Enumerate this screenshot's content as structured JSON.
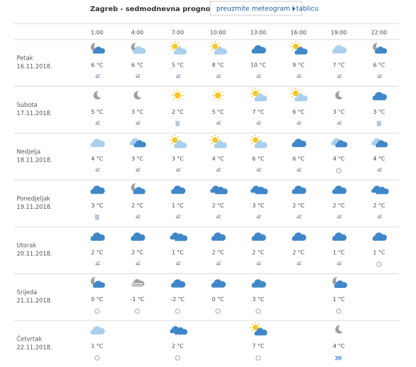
{
  "header": {
    "title": "Zagreb - sedmodnevna prognoza",
    "button": "preuzmite meteogram i tablicu"
  },
  "table": {
    "times": [
      "1:00",
      "4:00",
      "7:00",
      "10:00",
      "13:00",
      "16:00",
      "19:00",
      "22:00"
    ],
    "rows": [
      {
        "day": "Petak",
        "date": "16.11.2018.",
        "temps": [
          "6 °C",
          "6 °C",
          "5 °C",
          "8 °C",
          "10 °C",
          "9 °C",
          "7 °C",
          "6 °C"
        ]
      },
      {
        "day": "Subota",
        "date": "17.11.2018.",
        "temps": [
          "5 °C",
          "3 °C",
          "2 °C",
          "5 °C",
          "7 °C",
          "6 °C",
          "3 °C",
          "3 °C"
        ]
      },
      {
        "day": "Nedjelja",
        "date": "18.11.2018.",
        "temps": [
          "4 °C",
          "3 °C",
          "3 °C",
          "4 °C",
          "6 °C",
          "6 °C",
          "4 °C",
          "4 °C"
        ]
      },
      {
        "day": "Ponedjeljak",
        "date": "19.11.2018.",
        "temps": [
          "3 °C",
          "2 °C",
          "1 °C",
          "2 °C",
          "3 °C",
          "2 °C",
          "2 °C",
          "2 °C"
        ]
      },
      {
        "day": "Utorak",
        "date": "20.11.2018.",
        "temps": [
          "2 °C",
          "2 °C",
          "1 °C",
          "2 °C",
          "2 °C",
          "2 °C",
          "1 °C",
          "1 °C"
        ]
      },
      {
        "day": "Srijeda",
        "date": "21.11.2018.",
        "temps": [
          "0 °C",
          "-1 °C",
          "-2 °C",
          "0 °C",
          "3 °C",
          null,
          "1 °C",
          null
        ]
      },
      {
        "day": "Četvrtak",
        "date": "22.11.2018.",
        "temps": [
          "1 °C",
          null,
          "2 °C",
          null,
          "7 °C",
          null,
          "4 °C",
          null
        ]
      }
    ]
  }
}
